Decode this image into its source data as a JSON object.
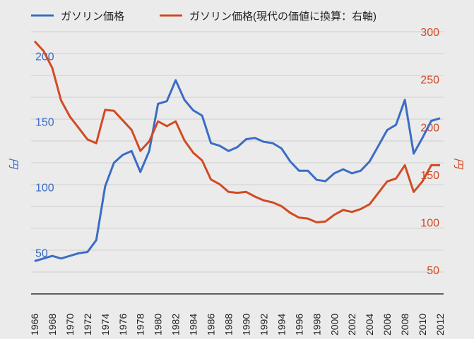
{
  "chart_data": {
    "type": "line",
    "colors": {
      "left": "#3c6cc5",
      "right": "#d24a23",
      "grid": "#cfcfcf",
      "axis": "#333333"
    },
    "legend": [
      {
        "label": "ガソリン価格",
        "series": "left"
      },
      {
        "label": "ガソリン価格(現代の価値に換算：右軸)",
        "series": "right"
      }
    ],
    "y_left": {
      "label": "円",
      "ticks": [
        "200",
        "150",
        "100",
        "50"
      ],
      "tick_values": [
        200,
        150,
        100,
        50
      ],
      "range": [
        25,
        225
      ]
    },
    "y_right": {
      "label": "円",
      "ticks": [
        "300",
        "250",
        "200",
        "150",
        "100",
        "50"
      ],
      "tick_values": [
        300,
        250,
        200,
        150,
        100,
        50
      ],
      "range": [
        25,
        300
      ]
    },
    "x_ticks": [
      "1966",
      "1968",
      "1970",
      "1972",
      "1974",
      "1976",
      "1978",
      "1980",
      "1982",
      "1984",
      "1986",
      "1988",
      "1990",
      "1992",
      "1994",
      "1996",
      "1998",
      "2000",
      "2002",
      "2004",
      "2006",
      "2008",
      "2010",
      "2012"
    ],
    "series": [
      {
        "name": "ガソリン価格",
        "axis": "left",
        "x": [
          1966,
          1967,
          1968,
          1969,
          1970,
          1971,
          1972,
          1973,
          1974,
          1975,
          1976,
          1977,
          1978,
          1979,
          1980,
          1981,
          1982,
          1983,
          1984,
          1985,
          1986,
          1987,
          1988,
          1989,
          1990,
          1991,
          1992,
          1993,
          1994,
          1995,
          1996,
          1997,
          1998,
          1999,
          2000,
          2001,
          2002,
          2003,
          2004,
          2005,
          2006,
          2007,
          2008,
          2009,
          2010,
          2011,
          2012
        ],
        "values": [
          50,
          52,
          54,
          52,
          54,
          56,
          57,
          66,
          107,
          125,
          131,
          134,
          118,
          134,
          170,
          172,
          188,
          173,
          165,
          161,
          140,
          138,
          134,
          137,
          143,
          144,
          141,
          140,
          136,
          126,
          119,
          119,
          112,
          111,
          117,
          120,
          117,
          119,
          126,
          138,
          150,
          154,
          173,
          132,
          144,
          157,
          159
        ]
      },
      {
        "name": "ガソリン価格(現代の価値に換算：右軸)",
        "axis": "right",
        "x": [
          1966,
          1967,
          1968,
          1969,
          1970,
          1971,
          1972,
          1973,
          1974,
          1975,
          1976,
          1977,
          1978,
          1979,
          1980,
          1981,
          1982,
          1983,
          1984,
          1985,
          1986,
          1987,
          1988,
          1989,
          1990,
          1991,
          1992,
          1993,
          1994,
          1995,
          1996,
          1997,
          1998,
          1999,
          2000,
          2001,
          2002,
          2003,
          2004,
          2005,
          2006,
          2007,
          2008,
          2009,
          2010,
          2011,
          2012
        ],
        "values": [
          290,
          280,
          262,
          228,
          211,
          199,
          187,
          183,
          218,
          217,
          207,
          197,
          175,
          185,
          206,
          201,
          206,
          186,
          173,
          165,
          145,
          140,
          132,
          131,
          132,
          127,
          123,
          121,
          117,
          110,
          105,
          104,
          100,
          101,
          108,
          113,
          111,
          114,
          119,
          131,
          143,
          146,
          160,
          132,
          143,
          160,
          160
        ]
      }
    ]
  }
}
